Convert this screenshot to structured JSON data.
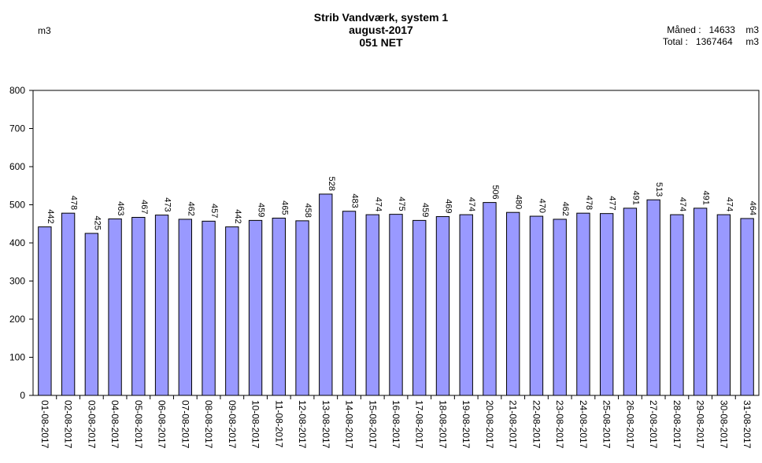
{
  "header": {
    "title_line1": "Strib Vandværk, system 1",
    "title_line2": "august-2017",
    "title_line3": "051 NET",
    "unit": "m3",
    "month_label": "Måned :",
    "month_value": "14633",
    "month_unit": "m3",
    "total_label": "Total :",
    "total_value": "1367464",
    "total_unit": "m3"
  },
  "chart_data": {
    "type": "bar",
    "title": "Strib Vandværk, system 1",
    "ylabel": "m3",
    "xlabel": "",
    "ylim": [
      0,
      800
    ],
    "yticks": [
      0,
      100,
      200,
      300,
      400,
      500,
      600,
      700,
      800
    ],
    "grid": false,
    "bar_color": "#9999ff",
    "categories": [
      "01-08-2017",
      "02-08-2017",
      "03-08-2017",
      "04-08-2017",
      "05-08-2017",
      "06-08-2017",
      "07-08-2017",
      "08-08-2017",
      "09-08-2017",
      "10-08-2017",
      "11-08-2017",
      "12-08-2017",
      "13-08-2017",
      "14-08-2017",
      "15-08-2017",
      "16-08-2017",
      "17-08-2017",
      "18-08-2017",
      "19-08-2017",
      "20-08-2017",
      "21-08-2017",
      "22-08-2017",
      "23-08-2017",
      "24-08-2017",
      "25-08-2017",
      "26-08-2017",
      "27-08-2017",
      "28-08-2017",
      "29-08-2017",
      "30-08-2017",
      "31-08-2017"
    ],
    "values": [
      442,
      478,
      425,
      463,
      467,
      473,
      462,
      457,
      442,
      459,
      465,
      458,
      528,
      483,
      474,
      475,
      459,
      469,
      474,
      506,
      480,
      470,
      462,
      478,
      477,
      491,
      513,
      474,
      491,
      474,
      464
    ]
  }
}
